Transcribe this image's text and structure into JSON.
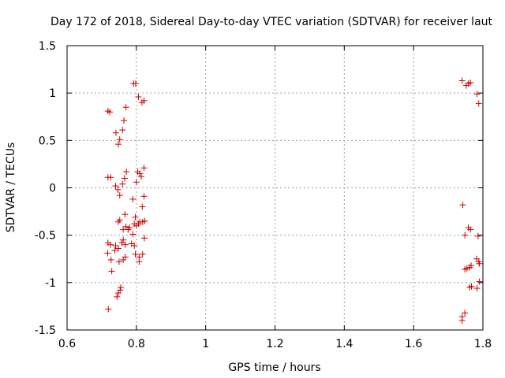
{
  "chart_data": {
    "type": "scatter",
    "title": "Day 172 of 2018, Sidereal Day-to-day VTEC variation (SDTVAR) for receiver laut",
    "xlabel": "GPS time / hours",
    "ylabel": "SDTVAR / TECUs",
    "xlim": [
      0.6,
      1.8
    ],
    "ylim": [
      -1.5,
      1.5
    ],
    "xticks": [
      0.6,
      0.8,
      1.0,
      1.2,
      1.4,
      1.6,
      1.8
    ],
    "xtick_labels": [
      "0.6",
      "0.8",
      "1",
      "1.2",
      "1.4",
      "1.6",
      "1.8"
    ],
    "yticks": [
      -1.5,
      -1.0,
      -0.5,
      0.0,
      0.5,
      1.0,
      1.5
    ],
    "ytick_labels": [
      "-1.5",
      "-1",
      "-0.5",
      "0",
      "0.5",
      "1",
      "1.5"
    ],
    "grid": true,
    "marker": "+",
    "color": "#cc0000",
    "series": [
      {
        "name": "SDTVAR",
        "points": [
          [
            0.718,
            0.81
          ],
          [
            0.723,
            0.8
          ],
          [
            0.718,
            0.11
          ],
          [
            0.726,
            0.11
          ],
          [
            0.718,
            -0.58
          ],
          [
            0.725,
            -0.6
          ],
          [
            0.717,
            -0.69
          ],
          [
            0.727,
            -0.76
          ],
          [
            0.729,
            -0.88
          ],
          [
            0.719,
            -1.28
          ],
          [
            0.741,
            0.58
          ],
          [
            0.748,
            0.46
          ],
          [
            0.752,
            0.51
          ],
          [
            0.76,
            0.61
          ],
          [
            0.764,
            0.71
          ],
          [
            0.77,
            0.85
          ],
          [
            0.74,
            0.02
          ],
          [
            0.747,
            -0.02
          ],
          [
            0.752,
            -0.08
          ],
          [
            0.76,
            0.04
          ],
          [
            0.766,
            0.1
          ],
          [
            0.771,
            0.17
          ],
          [
            0.752,
            -0.34
          ],
          [
            0.748,
            -0.36
          ],
          [
            0.762,
            -0.44
          ],
          [
            0.767,
            -0.28
          ],
          [
            0.77,
            -0.41
          ],
          [
            0.74,
            -0.61
          ],
          [
            0.738,
            -0.66
          ],
          [
            0.748,
            -0.64
          ],
          [
            0.758,
            -0.58
          ],
          [
            0.762,
            -0.55
          ],
          [
            0.768,
            -0.6
          ],
          [
            0.75,
            -0.78
          ],
          [
            0.762,
            -0.76
          ],
          [
            0.768,
            -0.73
          ],
          [
            0.753,
            -1.08
          ],
          [
            0.755,
            -1.05
          ],
          [
            0.748,
            -1.11
          ],
          [
            0.744,
            -1.15
          ],
          [
            0.792,
            1.1
          ],
          [
            0.798,
            1.1
          ],
          [
            0.806,
            0.96
          ],
          [
            0.816,
            0.9
          ],
          [
            0.822,
            0.92
          ],
          [
            0.79,
            -0.12
          ],
          [
            0.8,
            0.06
          ],
          [
            0.804,
            0.17
          ],
          [
            0.81,
            0.15
          ],
          [
            0.814,
            0.12
          ],
          [
            0.822,
            0.21
          ],
          [
            0.797,
            -0.31
          ],
          [
            0.81,
            -0.36
          ],
          [
            0.818,
            -0.36
          ],
          [
            0.824,
            -0.35
          ],
          [
            0.817,
            -0.2
          ],
          [
            0.822,
            -0.09
          ],
          [
            0.794,
            -0.38
          ],
          [
            0.8,
            -0.4
          ],
          [
            0.806,
            -0.38
          ],
          [
            0.78,
            -0.42
          ],
          [
            0.776,
            -0.44
          ],
          [
            0.79,
            -0.49
          ],
          [
            0.823,
            -0.53
          ],
          [
            0.786,
            -0.59
          ],
          [
            0.794,
            -0.61
          ],
          [
            0.797,
            -0.7
          ],
          [
            0.808,
            -0.73
          ],
          [
            0.818,
            -0.7
          ],
          [
            0.808,
            -0.78
          ],
          [
            1.74,
            1.13
          ],
          [
            1.752,
            1.08
          ],
          [
            1.758,
            1.1
          ],
          [
            1.764,
            1.11
          ],
          [
            1.783,
            0.99
          ],
          [
            1.788,
            0.89
          ],
          [
            1.742,
            -0.18
          ],
          [
            1.748,
            -0.5
          ],
          [
            1.758,
            -0.42
          ],
          [
            1.764,
            -0.44
          ],
          [
            1.786,
            -0.51
          ],
          [
            1.782,
            -0.75
          ],
          [
            1.788,
            -0.78
          ],
          [
            1.79,
            -0.8
          ],
          [
            1.748,
            -0.86
          ],
          [
            1.754,
            -0.85
          ],
          [
            1.762,
            -0.84
          ],
          [
            1.766,
            -0.82
          ],
          [
            1.79,
            -0.99
          ],
          [
            1.762,
            -1.05
          ],
          [
            1.767,
            -1.04
          ],
          [
            1.783,
            -1.06
          ],
          [
            1.74,
            -1.36
          ],
          [
            1.748,
            -1.32
          ],
          [
            1.74,
            -1.4
          ]
        ]
      }
    ]
  }
}
